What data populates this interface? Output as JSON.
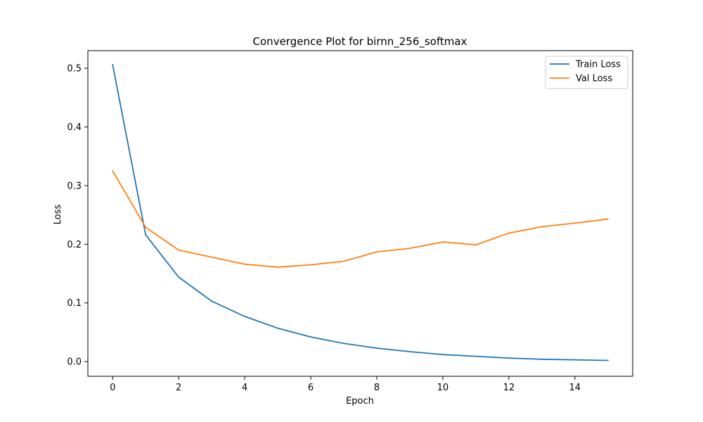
{
  "chart_data": {
    "type": "line",
    "title": "Convergence Plot for birnn_256_softmax",
    "xlabel": "Epoch",
    "ylabel": "Loss",
    "xlim": [
      -0.75,
      15.75
    ],
    "ylim": [
      -0.025,
      0.53
    ],
    "xticks": [
      0,
      2,
      4,
      6,
      8,
      10,
      12,
      14
    ],
    "xtick_labels": [
      "0",
      "2",
      "4",
      "6",
      "8",
      "10",
      "12",
      "14"
    ],
    "yticks": [
      0.0,
      0.1,
      0.2,
      0.3,
      0.4,
      0.5
    ],
    "ytick_labels": [
      "0.0",
      "0.1",
      "0.2",
      "0.3",
      "0.4",
      "0.5"
    ],
    "grid": false,
    "legend_position": "top-right",
    "x": [
      0,
      1,
      2,
      3,
      4,
      5,
      6,
      7,
      8,
      9,
      10,
      11,
      12,
      13,
      14,
      15
    ],
    "series": [
      {
        "name": "Train Loss",
        "color": "#1f77b4",
        "values": [
          0.506,
          0.216,
          0.144,
          0.103,
          0.077,
          0.057,
          0.042,
          0.031,
          0.023,
          0.017,
          0.012,
          0.009,
          0.006,
          0.004,
          0.003,
          0.002
        ]
      },
      {
        "name": "Val Loss",
        "color": "#ff7f0e",
        "values": [
          0.325,
          0.229,
          0.19,
          0.178,
          0.166,
          0.161,
          0.165,
          0.171,
          0.187,
          0.193,
          0.204,
          0.199,
          0.219,
          0.23,
          0.236,
          0.243
        ]
      }
    ]
  }
}
